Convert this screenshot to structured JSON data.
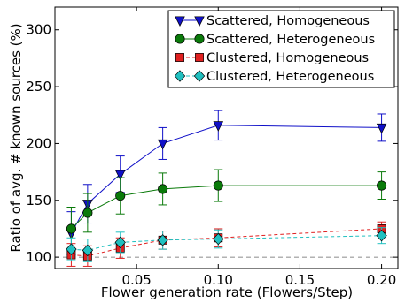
{
  "chart_data": {
    "type": "line",
    "xlabel": "Flower generation rate (Flowers/Step)",
    "ylabel": "Ratio of avg. # known sources (%)",
    "xlim": [
      0.0,
      0.21
    ],
    "ylim": [
      90,
      320
    ],
    "xticks": [
      0.05,
      0.1,
      0.15,
      0.2
    ],
    "xtick_labels": [
      "0.05",
      "0.10",
      "0.15",
      "0.20"
    ],
    "yticks": [
      100,
      150,
      200,
      250,
      300
    ],
    "ytick_labels": [
      "100",
      "150",
      "200",
      "250",
      "300"
    ],
    "reference_line": 100,
    "legend_position": "top-right",
    "x": [
      0.01,
      0.02,
      0.04,
      0.066,
      0.1,
      0.2
    ],
    "series": [
      {
        "name": "Scattered, Homogeneous",
        "color": "#1010c8",
        "marker": "triangle-down",
        "line": "solid",
        "values": [
          121,
          147,
          173,
          200,
          216,
          214
        ],
        "errors": [
          19,
          17,
          16,
          14,
          13,
          12
        ]
      },
      {
        "name": "Scattered, Heterogeneous",
        "color": "#0a7a0a",
        "marker": "circle",
        "line": "solid",
        "values": [
          125,
          139,
          154,
          160,
          163,
          163
        ],
        "errors": [
          19,
          17,
          16,
          14,
          14,
          12
        ]
      },
      {
        "name": "Clustered, Homogeneous",
        "color": "#e02020",
        "marker": "square",
        "line": "dashed",
        "values": [
          102,
          101,
          108,
          115,
          117,
          125
        ],
        "errors": [
          10,
          9,
          9,
          8,
          8,
          6
        ]
      },
      {
        "name": "Clustered, Heterogeneous",
        "color": "#20c0c0",
        "marker": "diamond",
        "line": "dashed",
        "values": [
          107,
          106,
          113,
          115,
          116,
          119
        ],
        "errors": [
          10,
          10,
          9,
          8,
          8,
          7
        ]
      }
    ]
  }
}
